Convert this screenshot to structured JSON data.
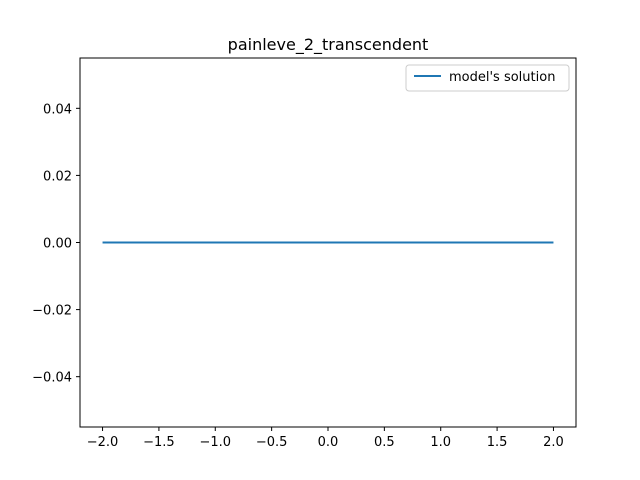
{
  "chart_data": {
    "type": "line",
    "title": "painleve_2_transcendent",
    "xlabel": "",
    "ylabel": "",
    "xlim": [
      -2.2,
      2.2
    ],
    "ylim": [
      -0.055,
      0.055
    ],
    "xticks": [
      -2.0,
      -1.5,
      -1.0,
      -0.5,
      0.0,
      0.5,
      1.0,
      1.5,
      2.0
    ],
    "xtick_labels": [
      "−2.0",
      "−1.5",
      "−1.0",
      "−0.5",
      "0.0",
      "0.5",
      "1.0",
      "1.5",
      "2.0"
    ],
    "yticks": [
      -0.04,
      -0.02,
      0.0,
      0.02,
      0.04
    ],
    "ytick_labels": [
      "−0.04",
      "−0.02",
      "0.00",
      "0.02",
      "0.04"
    ],
    "grid": false,
    "legend_position": "top-right",
    "series": [
      {
        "name": "model's solution",
        "color": "#1f77b4",
        "x": [
          -2.0,
          2.0
        ],
        "y": [
          0.0,
          0.0
        ]
      }
    ]
  }
}
